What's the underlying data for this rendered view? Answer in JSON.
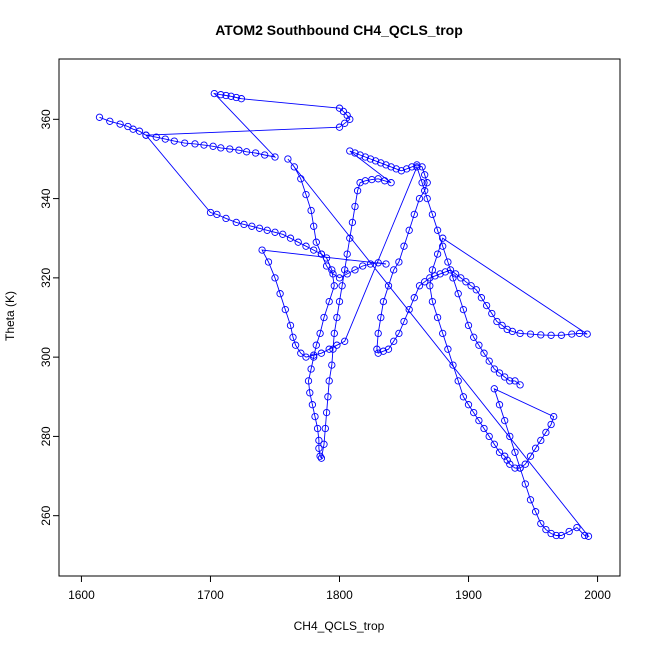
{
  "chart_data": {
    "type": "scatter",
    "title": "ATOM2 Southbound CH4_QCLS_trop",
    "xlabel": "CH4_QCLS_trop",
    "ylabel": "Theta (K)",
    "xlim": [
      1600,
      2000
    ],
    "ylim": [
      250,
      370
    ],
    "x_ticks": [
      1600,
      1700,
      1800,
      1900,
      2000
    ],
    "y_ticks": [
      260,
      280,
      300,
      320,
      340,
      360
    ],
    "color": "#0000ff",
    "marker": "open-circle",
    "connected": true,
    "grid": false,
    "legend": "none",
    "series": [
      {
        "values": [
          [
            1614,
            360.5
          ],
          [
            1622,
            359.5
          ],
          [
            1630,
            358.8
          ],
          [
            1636,
            358.2
          ],
          [
            1640,
            357.5
          ],
          [
            1645,
            357
          ],
          [
            1650,
            356
          ],
          [
            1658,
            355.5
          ],
          [
            1665,
            355
          ],
          [
            1672,
            354.5
          ],
          [
            1680,
            354
          ],
          [
            1688,
            353.8
          ],
          [
            1695,
            353.5
          ],
          [
            1702,
            353.2
          ],
          [
            1708,
            352.8
          ],
          [
            1715,
            352.5
          ],
          [
            1722,
            352.2
          ],
          [
            1728,
            351.8
          ],
          [
            1735,
            351.5
          ],
          [
            1742,
            351
          ],
          [
            1750,
            350.5
          ],
          [
            1703,
            366.5
          ],
          [
            1708,
            366.2
          ],
          [
            1712,
            366
          ],
          [
            1716,
            365.8
          ],
          [
            1720,
            365.5
          ],
          [
            1724,
            365.2
          ],
          [
            1800,
            362.8
          ],
          [
            1803,
            362
          ],
          [
            1806,
            361
          ],
          [
            1808,
            360
          ],
          [
            1804,
            359
          ],
          [
            1800,
            358
          ],
          [
            1650,
            356
          ],
          [
            1700,
            336.5
          ],
          [
            1705,
            336
          ],
          [
            1712,
            335
          ],
          [
            1720,
            334
          ],
          [
            1726,
            333.5
          ],
          [
            1732,
            333
          ],
          [
            1738,
            332.5
          ],
          [
            1744,
            332
          ],
          [
            1750,
            331.5
          ],
          [
            1756,
            331
          ],
          [
            1762,
            330
          ],
          [
            1768,
            329
          ],
          [
            1774,
            328
          ],
          [
            1780,
            327
          ],
          [
            1786,
            326
          ],
          [
            1790,
            325
          ],
          [
            1794,
            322
          ],
          [
            1796,
            318
          ],
          [
            1792,
            314
          ],
          [
            1788,
            310
          ],
          [
            1785,
            306
          ],
          [
            1782,
            303
          ],
          [
            1780,
            300
          ],
          [
            1778,
            297
          ],
          [
            1776,
            294
          ],
          [
            1777,
            291
          ],
          [
            1779,
            288
          ],
          [
            1781,
            285
          ],
          [
            1783,
            282
          ],
          [
            1784,
            279
          ],
          [
            1784,
            277
          ],
          [
            1785,
            275
          ],
          [
            1786,
            274.5
          ],
          [
            1788,
            278
          ],
          [
            1789,
            282
          ],
          [
            1790,
            286
          ],
          [
            1791,
            290
          ],
          [
            1792,
            294
          ],
          [
            1794,
            298
          ],
          [
            1795,
            302
          ],
          [
            1796,
            306
          ],
          [
            1798,
            310
          ],
          [
            1800,
            314
          ],
          [
            1802,
            318
          ],
          [
            1804,
            322
          ],
          [
            1806,
            326
          ],
          [
            1808,
            330
          ],
          [
            1810,
            334
          ],
          [
            1812,
            338
          ],
          [
            1814,
            342
          ],
          [
            1816,
            344
          ],
          [
            1820,
            344.5
          ],
          [
            1825,
            344.8
          ],
          [
            1830,
            345
          ],
          [
            1835,
            344.5
          ],
          [
            1840,
            344
          ],
          [
            1808,
            352
          ],
          [
            1812,
            351.5
          ],
          [
            1816,
            351
          ],
          [
            1820,
            350.5
          ],
          [
            1824,
            350
          ],
          [
            1828,
            349.5
          ],
          [
            1832,
            349
          ],
          [
            1836,
            348.5
          ],
          [
            1840,
            348
          ],
          [
            1844,
            347.5
          ],
          [
            1848,
            347
          ],
          [
            1852,
            347.5
          ],
          [
            1856,
            348
          ],
          [
            1860,
            348.5
          ],
          [
            1864,
            348
          ],
          [
            1866,
            346
          ],
          [
            1868,
            344
          ],
          [
            1866,
            342
          ],
          [
            1862,
            340
          ],
          [
            1858,
            336
          ],
          [
            1854,
            332
          ],
          [
            1850,
            328
          ],
          [
            1846,
            324
          ],
          [
            1842,
            322
          ],
          [
            1838,
            318
          ],
          [
            1834,
            314
          ],
          [
            1832,
            310
          ],
          [
            1830,
            306
          ],
          [
            1829,
            302
          ],
          [
            1830,
            301
          ],
          [
            1834,
            301.5
          ],
          [
            1838,
            302
          ],
          [
            1842,
            304
          ],
          [
            1846,
            306
          ],
          [
            1850,
            309
          ],
          [
            1854,
            312
          ],
          [
            1858,
            315
          ],
          [
            1862,
            318
          ],
          [
            1866,
            319
          ],
          [
            1870,
            320
          ],
          [
            1874,
            320.5
          ],
          [
            1878,
            321
          ],
          [
            1882,
            321.5
          ],
          [
            1886,
            322
          ],
          [
            1890,
            321
          ],
          [
            1894,
            320
          ],
          [
            1898,
            319
          ],
          [
            1902,
            318
          ],
          [
            1906,
            317
          ],
          [
            1910,
            315
          ],
          [
            1914,
            313
          ],
          [
            1918,
            311
          ],
          [
            1922,
            309
          ],
          [
            1926,
            308
          ],
          [
            1930,
            307
          ],
          [
            1934,
            306.5
          ],
          [
            1940,
            306
          ],
          [
            1948,
            305.8
          ],
          [
            1956,
            305.6
          ],
          [
            1964,
            305.5
          ],
          [
            1972,
            305.5
          ],
          [
            1980,
            305.8
          ],
          [
            1986,
            306
          ],
          [
            1992,
            305.8
          ],
          [
            1880,
            330
          ],
          [
            1876,
            326
          ],
          [
            1872,
            322
          ],
          [
            1870,
            318
          ],
          [
            1872,
            314
          ],
          [
            1876,
            310
          ],
          [
            1880,
            306
          ],
          [
            1884,
            302
          ],
          [
            1888,
            298
          ],
          [
            1892,
            294
          ],
          [
            1896,
            290
          ],
          [
            1900,
            288
          ],
          [
            1904,
            286
          ],
          [
            1908,
            284
          ],
          [
            1912,
            282
          ],
          [
            1916,
            280
          ],
          [
            1920,
            278
          ],
          [
            1924,
            276
          ],
          [
            1928,
            275
          ],
          [
            1930,
            274
          ],
          [
            1932,
            273
          ],
          [
            1936,
            272
          ],
          [
            1940,
            272
          ],
          [
            1944,
            273
          ],
          [
            1948,
            275
          ],
          [
            1952,
            277
          ],
          [
            1956,
            279
          ],
          [
            1960,
            281
          ],
          [
            1964,
            283
          ],
          [
            1966,
            285
          ],
          [
            1920,
            292
          ],
          [
            1924,
            288
          ],
          [
            1928,
            284
          ],
          [
            1932,
            280
          ],
          [
            1936,
            276
          ],
          [
            1940,
            272
          ],
          [
            1944,
            268
          ],
          [
            1948,
            264
          ],
          [
            1952,
            261
          ],
          [
            1956,
            258
          ],
          [
            1960,
            256.5
          ],
          [
            1964,
            255.5
          ],
          [
            1968,
            255
          ],
          [
            1972,
            255
          ],
          [
            1978,
            256
          ],
          [
            1984,
            257
          ],
          [
            1990,
            255
          ],
          [
            1993,
            254.8
          ],
          [
            1760,
            350
          ],
          [
            1765,
            348
          ],
          [
            1770,
            345
          ],
          [
            1774,
            341
          ],
          [
            1778,
            337
          ],
          [
            1780,
            333
          ],
          [
            1782,
            329
          ],
          [
            1786,
            326
          ],
          [
            1790,
            323
          ],
          [
            1795,
            321
          ],
          [
            1800,
            320
          ],
          [
            1806,
            321
          ],
          [
            1812,
            322
          ],
          [
            1818,
            323
          ],
          [
            1824,
            323.5
          ],
          [
            1830,
            323.8
          ],
          [
            1836,
            323.5
          ],
          [
            1740,
            327
          ],
          [
            1745,
            324
          ],
          [
            1750,
            320
          ],
          [
            1754,
            316
          ],
          [
            1758,
            312
          ],
          [
            1762,
            308
          ],
          [
            1764,
            305
          ],
          [
            1766,
            303
          ],
          [
            1770,
            301
          ],
          [
            1774,
            300
          ],
          [
            1780,
            300.5
          ],
          [
            1786,
            301
          ],
          [
            1792,
            302
          ],
          [
            1798,
            303
          ],
          [
            1804,
            304
          ],
          [
            1860,
            348
          ],
          [
            1864,
            344
          ],
          [
            1868,
            340
          ],
          [
            1872,
            336
          ],
          [
            1876,
            332
          ],
          [
            1880,
            328
          ],
          [
            1884,
            324
          ],
          [
            1888,
            320
          ],
          [
            1892,
            316
          ],
          [
            1896,
            312
          ],
          [
            1900,
            308
          ],
          [
            1904,
            305
          ],
          [
            1908,
            303
          ],
          [
            1912,
            301
          ],
          [
            1916,
            299
          ],
          [
            1920,
            297
          ],
          [
            1924,
            296
          ],
          [
            1928,
            295
          ],
          [
            1932,
            294
          ],
          [
            1936,
            294
          ],
          [
            1940,
            293
          ]
        ]
      }
    ]
  }
}
